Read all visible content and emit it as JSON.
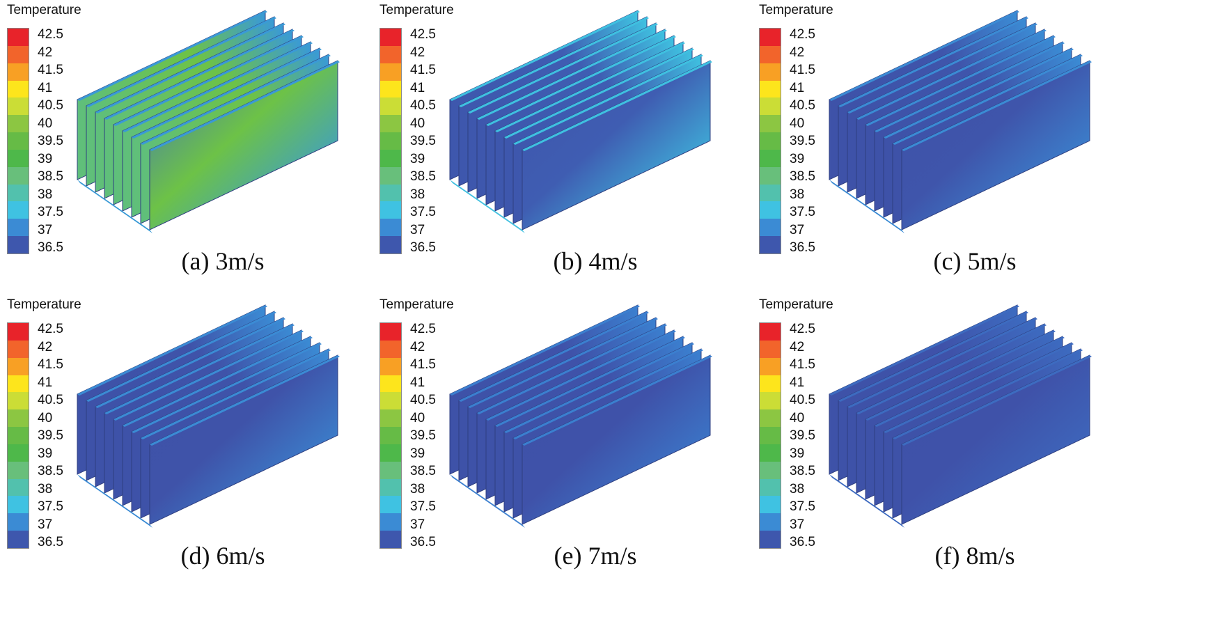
{
  "legend": {
    "title": "Temperature",
    "labels": [
      "42.5",
      "42",
      "41.5",
      "41",
      "40.5",
      "40",
      "39.5",
      "39",
      "38.5",
      "38",
      "37.5",
      "37",
      "36.5"
    ],
    "colors": [
      "#e8232a",
      "#f2642b",
      "#f8a024",
      "#fde51c",
      "#cbdd36",
      "#8cc642",
      "#66bb46",
      "#4eb84a",
      "#68bf7b",
      "#52c1ad",
      "#3fc2e2",
      "#3b8bd4",
      "#3e57ad"
    ]
  },
  "panels": [
    {
      "caption": "(a) 3m/s",
      "velocity_ms": 3,
      "base": "#6dc247",
      "back": "#5fbf7c",
      "hot": "#c9dc3a",
      "cool": "#3a9ad6",
      "cold": "#3f6fc0"
    },
    {
      "caption": "(b) 4m/s",
      "velocity_ms": 4,
      "base": "#3f5db2",
      "back": "#3e57ad",
      "hot": "#57c7b6",
      "cool": "#3fc0e0",
      "cold": "#3e55ab"
    },
    {
      "caption": "(c) 5m/s",
      "velocity_ms": 5,
      "base": "#3f55ab",
      "back": "#3e52a8",
      "hot": "#3fc0e0",
      "cool": "#3b8bd4",
      "cold": "#3e52a8"
    },
    {
      "caption": "(d) 6m/s",
      "velocity_ms": 6,
      "base": "#3f53a9",
      "back": "#3e52a8",
      "hot": "#45c3dc",
      "cool": "#3b8bd4",
      "cold": "#3e52a8"
    },
    {
      "caption": "(e) 7m/s",
      "velocity_ms": 7,
      "base": "#3f52a9",
      "back": "#3e52a8",
      "hot": "#3fb8e0",
      "cool": "#3b7fcf",
      "cold": "#3e52a8"
    },
    {
      "caption": "(f) 8m/s",
      "velocity_ms": 8,
      "base": "#3f52a9",
      "back": "#3e52a8",
      "hot": "#3b8bd4",
      "cool": "#3d6bc0",
      "cold": "#3e52a8"
    }
  ]
}
